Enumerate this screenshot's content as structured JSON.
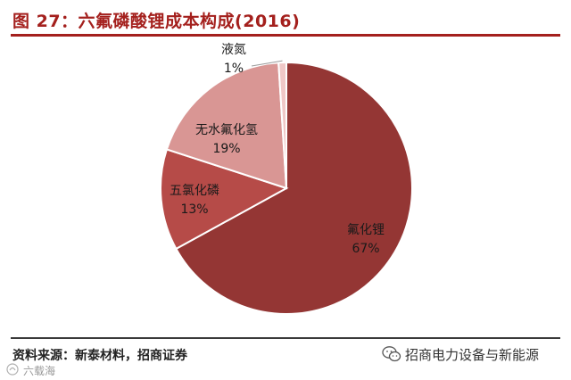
{
  "header": {
    "title": "图 27：六氟磷酸锂成本构成(2016)"
  },
  "chart_data": {
    "type": "pie",
    "title": "",
    "slices": [
      {
        "label": "氟化锂",
        "value": 67,
        "pct": "67%",
        "color": "#943634"
      },
      {
        "label": "五氯化磷",
        "value": 13,
        "pct": "13%",
        "color": "#b64b48"
      },
      {
        "label": "无水氟化氢",
        "value": 19,
        "pct": "19%",
        "color": "#d99694"
      },
      {
        "label": "液氮",
        "value": 1,
        "pct": "1%",
        "color": "#f0c8c7"
      }
    ],
    "legend": "none",
    "start_angle_deg": 0,
    "direction": "clockwise"
  },
  "footer": {
    "source": "资料来源：新泰材料，招商证券",
    "account": "招商电力设备与新能源",
    "watermark": "六载海"
  }
}
